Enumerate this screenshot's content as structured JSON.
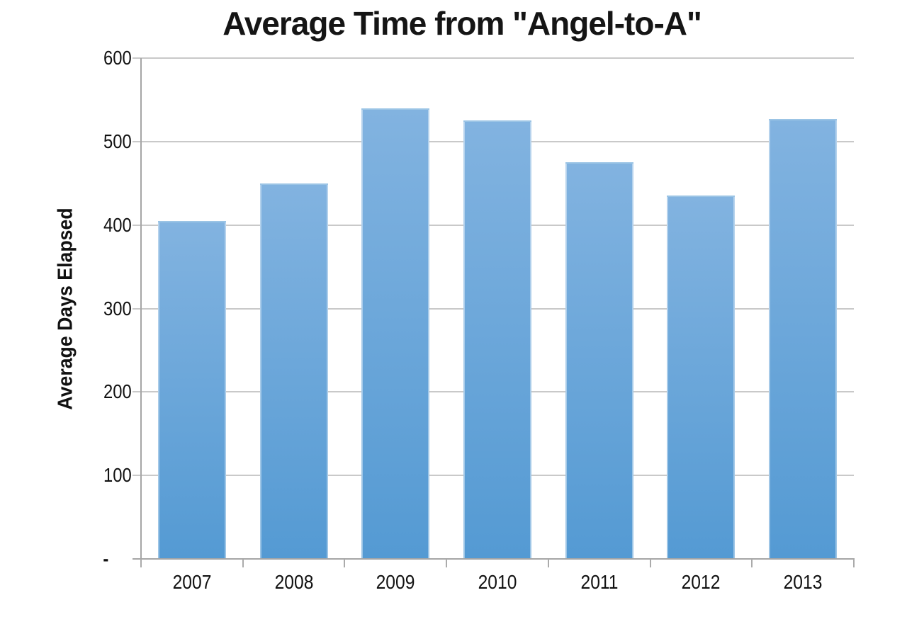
{
  "chart_data": {
    "type": "bar",
    "title": "Average Time from \"Angel-to-A\"",
    "xlabel": "",
    "ylabel": "Average Days Elapsed",
    "categories": [
      "2007",
      "2008",
      "2009",
      "2010",
      "2011",
      "2012",
      "2013"
    ],
    "values": [
      405,
      450,
      540,
      525,
      475,
      435,
      527
    ],
    "ylim": [
      0,
      600
    ],
    "ytick_step": 100,
    "ytick_labels": [
      "-",
      "100",
      "200",
      "300",
      "400",
      "500",
      "600"
    ],
    "grid": true,
    "legend": false,
    "colors": {
      "bar_top": "#82b3e0",
      "bar_bottom": "#549ad3",
      "gridline": "#c9c9c9",
      "axis": "#a6a6a6",
      "text": "#111111"
    }
  }
}
